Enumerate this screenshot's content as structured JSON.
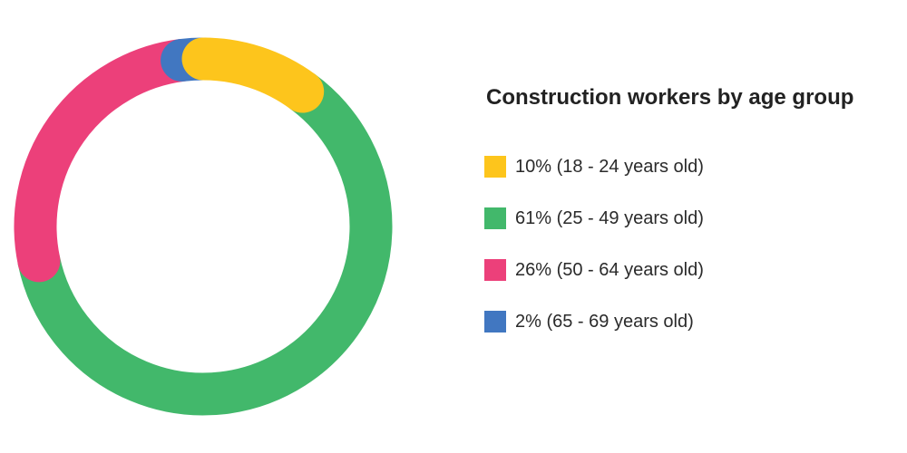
{
  "chart_data": {
    "type": "pie",
    "title": "Construction workers by age group",
    "legend_position": "right",
    "categories": [
      "18 - 24 years old",
      "25 - 49 years old",
      "50 - 64 years old",
      "65 - 69 years old"
    ],
    "values": [
      10,
      61,
      26,
      2
    ],
    "labels": [
      "10% (18 - 24 years old)",
      "61% (25 - 49 years old)",
      "26% (50 - 64 years old)",
      "2% (65 - 69 years old)"
    ],
    "colors": [
      "#FDC51C",
      "#42B86B",
      "#EC407A",
      "#4177C1"
    ]
  }
}
